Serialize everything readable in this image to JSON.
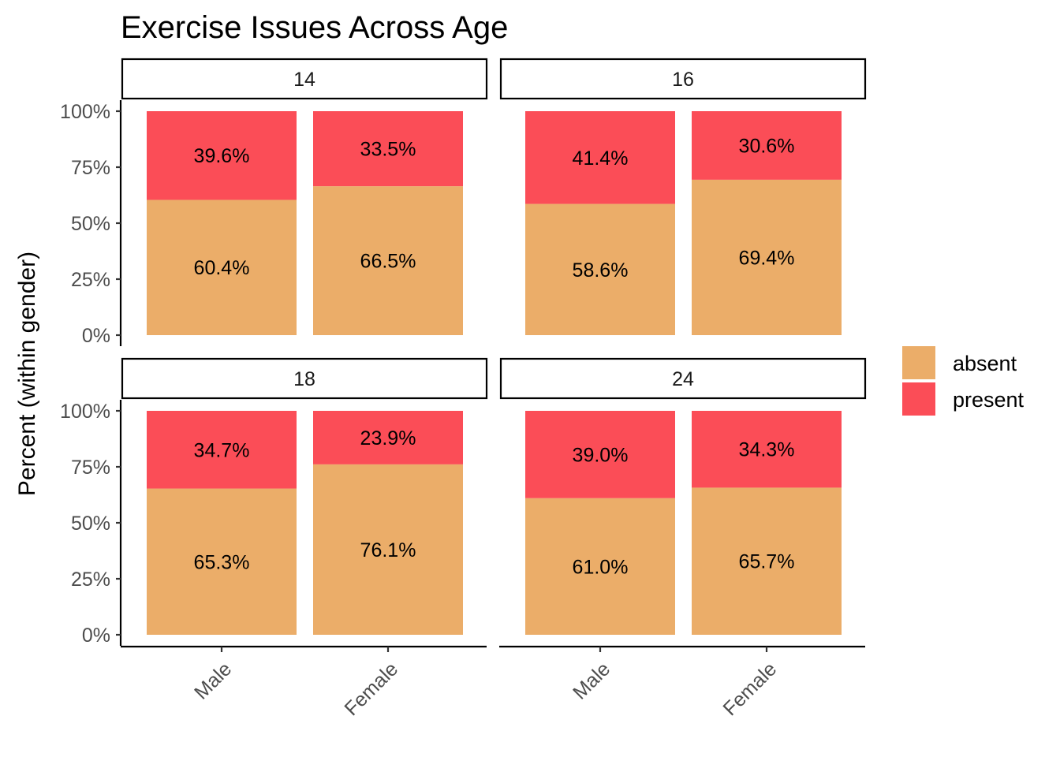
{
  "chart_data": {
    "type": "bar",
    "stacked": true,
    "title": "Exercise Issues Across Age",
    "xlabel": "",
    "ylabel": "Percent (within gender)",
    "ylim": [
      0,
      100
    ],
    "yticks": [
      "0%",
      "25%",
      "50%",
      "75%",
      "100%"
    ],
    "categories": [
      "Male",
      "Female"
    ],
    "legend": {
      "position": "right",
      "entries": [
        "absent",
        "present"
      ]
    },
    "colors": {
      "absent": "#ebad69",
      "present": "#fb4d57"
    },
    "grid": false,
    "facets": [
      {
        "label": "14",
        "series": [
          {
            "name": "absent",
            "values": [
              60.4,
              66.5
            ],
            "labels": [
              "60.4%",
              "66.5%"
            ]
          },
          {
            "name": "present",
            "values": [
              39.6,
              33.5
            ],
            "labels": [
              "39.6%",
              "33.5%"
            ]
          }
        ]
      },
      {
        "label": "16",
        "series": [
          {
            "name": "absent",
            "values": [
              58.6,
              69.4
            ],
            "labels": [
              "58.6%",
              "69.4%"
            ]
          },
          {
            "name": "present",
            "values": [
              41.4,
              30.6
            ],
            "labels": [
              "41.4%",
              "30.6%"
            ]
          }
        ]
      },
      {
        "label": "18",
        "series": [
          {
            "name": "absent",
            "values": [
              65.3,
              76.1
            ],
            "labels": [
              "65.3%",
              "76.1%"
            ]
          },
          {
            "name": "present",
            "values": [
              34.7,
              23.9
            ],
            "labels": [
              "34.7%",
              "23.9%"
            ]
          }
        ]
      },
      {
        "label": "24",
        "series": [
          {
            "name": "absent",
            "values": [
              61.0,
              65.7
            ],
            "labels": [
              "61.0%",
              "65.7%"
            ]
          },
          {
            "name": "present",
            "values": [
              39.0,
              34.3
            ],
            "labels": [
              "39.0%",
              "34.3%"
            ]
          }
        ]
      }
    ]
  }
}
